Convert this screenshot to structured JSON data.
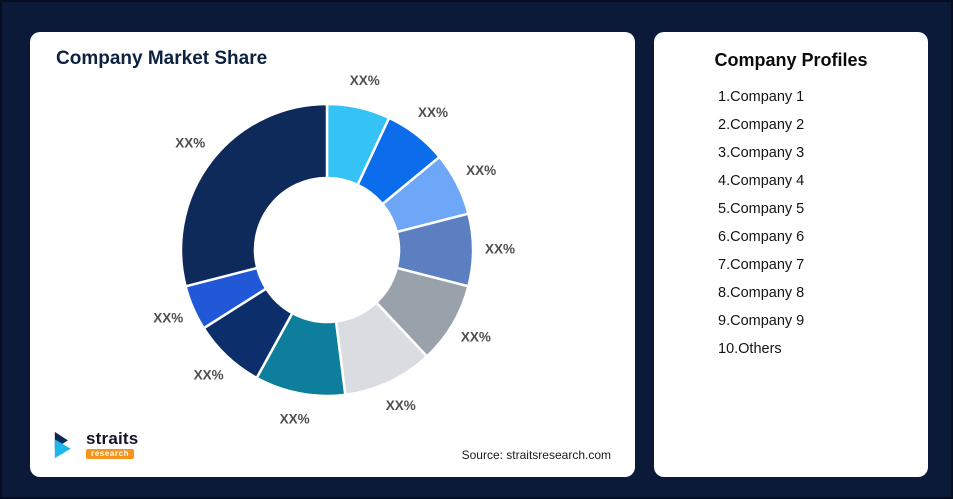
{
  "page": {
    "background": "#0a1a38",
    "card_background": "#ffffff"
  },
  "market_share_card": {
    "title": "Company Market Share",
    "source": "Source: straitsresearch.com",
    "logo": {
      "brand": "straits",
      "sub_brand": "research"
    }
  },
  "profiles_card": {
    "title": "Company Profiles",
    "items": [
      "1.Company 1",
      "2.Company 2",
      "3.Company 3",
      "4.Company 4",
      "5.Company 5",
      "6.Company 6",
      "7.Company 7",
      "8.Company 8",
      "9.Company 9",
      "10.Others"
    ]
  },
  "chart_data": {
    "type": "pie",
    "variant": "donut",
    "title": "Company Market Share",
    "value_label": "XX%",
    "label_color": "#4f4f4f",
    "start_angle_deg": 0,
    "direction": "clockwise",
    "legend_position": "none",
    "segments": [
      {
        "name": "Company 1",
        "label": "XX%",
        "est_share_pct": 7,
        "color": "#35c2f5"
      },
      {
        "name": "Company 2",
        "label": "XX%",
        "est_share_pct": 7,
        "color": "#0b6cec"
      },
      {
        "name": "Company 3",
        "label": "XX%",
        "est_share_pct": 7,
        "color": "#6fa7f8"
      },
      {
        "name": "Company 4",
        "label": "XX%",
        "est_share_pct": 8,
        "color": "#5c7fc1"
      },
      {
        "name": "Company 5",
        "label": "XX%",
        "est_share_pct": 9,
        "color": "#99a1ab"
      },
      {
        "name": "Company 6",
        "label": "XX%",
        "est_share_pct": 10,
        "color": "#d9dde1"
      },
      {
        "name": "Company 7",
        "label": "XX%",
        "est_share_pct": 10,
        "color": "#0e7e9d"
      },
      {
        "name": "Company 8",
        "label": "XX%",
        "est_share_pct": 8,
        "color": "#0c2f6b"
      },
      {
        "name": "Company 9",
        "label": "XX%",
        "est_share_pct": 5,
        "color": "#2058d8"
      },
      {
        "name": "Others",
        "label": "XX%",
        "est_share_pct": 29,
        "color": "#0e2a5a"
      }
    ]
  }
}
